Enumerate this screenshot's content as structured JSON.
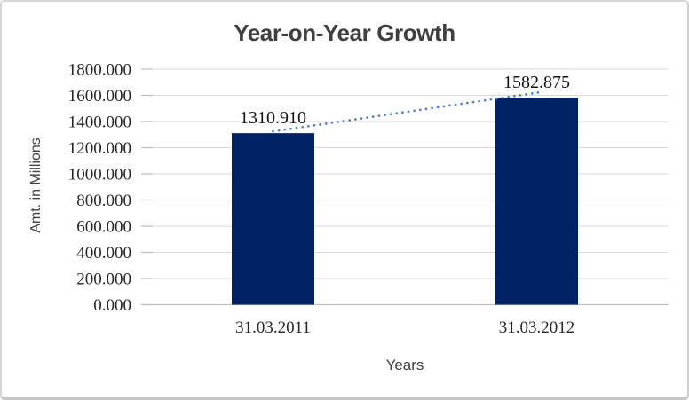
{
  "chart_data": {
    "type": "bar",
    "title": "Year-on-Year Growth",
    "xlabel": "Years",
    "ylabel": "Amt. in Millions",
    "categories": [
      "31.03.2011",
      "31.03.2012"
    ],
    "values": [
      1310.91,
      1582.875
    ],
    "data_labels": [
      "1310.910",
      "1582.875"
    ],
    "ylim": [
      0,
      1800
    ],
    "ytick_interval": 200,
    "ytick_labels": [
      "0.000",
      "200.000",
      "400.000",
      "600.000",
      "800.000",
      "1000.000",
      "1200.000",
      "1400.000",
      "1600.000",
      "1800.000"
    ],
    "grid": true,
    "legend": "none",
    "series_name": "Amt. in Millions",
    "bar_color": "#012264",
    "trendline": {
      "type": "linear",
      "style": "dotted",
      "color": "#4f81bd"
    },
    "gridline_color": "#d9d9d9",
    "axis_line_color": "#bfbfbf",
    "label_color": "#262626",
    "title_color": "#3f3f3f"
  }
}
